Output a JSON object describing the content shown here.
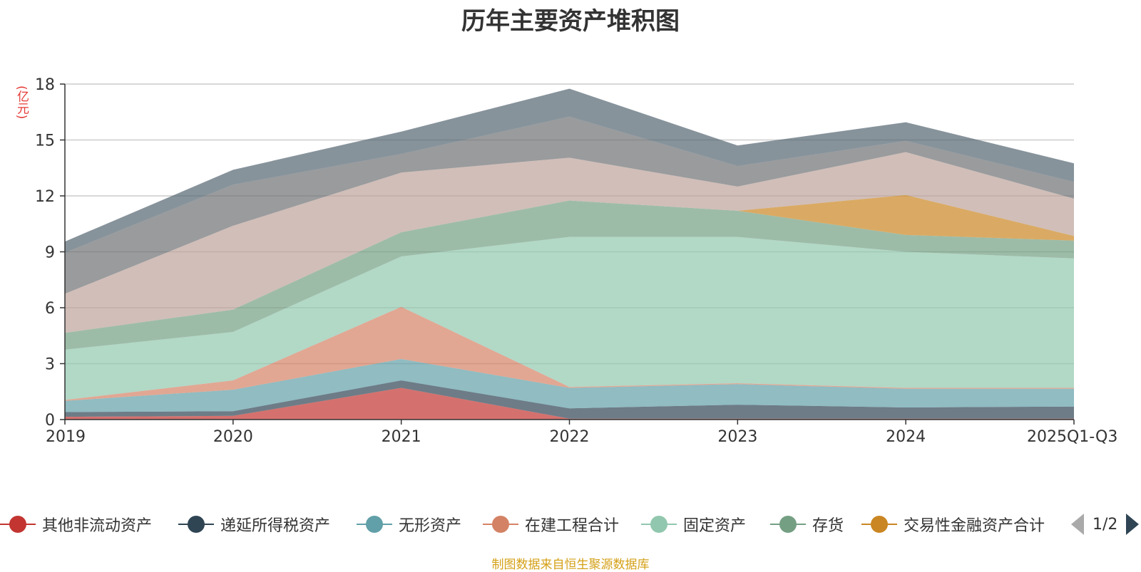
{
  "chart_data": {
    "type": "area",
    "stacked": true,
    "title": "历年主要资产堆积图",
    "ylabel": "(亿元)",
    "xlabel": "",
    "categories": [
      "2019",
      "2020",
      "2021",
      "2022",
      "2023",
      "2024",
      "2025Q1-Q3"
    ],
    "ylim": [
      0,
      18
    ],
    "yticks": [
      0,
      3,
      6,
      9,
      12,
      15,
      18
    ],
    "grid": true,
    "legend_position": "bottom",
    "series": [
      {
        "name": "其他非流动资产",
        "color": "#c23531",
        "legend": true,
        "values": [
          0.15,
          0.2,
          1.7,
          0.05,
          0.05,
          0.05,
          0.05
        ]
      },
      {
        "name": "递延所得税资产",
        "color": "#2f4554",
        "legend": true,
        "values": [
          0.25,
          0.25,
          0.4,
          0.55,
          0.75,
          0.6,
          0.65
        ]
      },
      {
        "name": "无形资产",
        "color": "#61a0a8",
        "legend": true,
        "values": [
          0.6,
          1.15,
          1.15,
          1.1,
          1.1,
          1.0,
          0.95
        ]
      },
      {
        "name": "在建工程合计",
        "color": "#d48265",
        "legend": true,
        "values": [
          0.05,
          0.5,
          2.8,
          0.05,
          0.05,
          0.05,
          0.05
        ]
      },
      {
        "name": "固定资产",
        "color": "#91c7ae",
        "legend": true,
        "values": [
          2.7,
          2.6,
          2.7,
          8.05,
          7.85,
          7.3,
          6.95
        ]
      },
      {
        "name": "存货",
        "color": "#749f83",
        "legend": true,
        "values": [
          0.9,
          1.2,
          1.3,
          1.95,
          1.4,
          0.9,
          0.95
        ]
      },
      {
        "name": "交易性金融资产合计",
        "color": "#ca8622",
        "legend": true,
        "values": [
          0.0,
          0.0,
          0.0,
          0.0,
          0.0,
          2.15,
          0.25
        ]
      },
      {
        "name": "",
        "color": "#bda29a",
        "legend": false,
        "values": [
          2.1,
          4.5,
          3.2,
          2.3,
          1.3,
          2.3,
          2.0
        ]
      },
      {
        "name": "",
        "color": "#6e7074",
        "legend": false,
        "values": [
          2.2,
          2.2,
          1.0,
          2.2,
          1.1,
          0.6,
          0.9
        ]
      },
      {
        "name": "",
        "color": "#546570",
        "legend": false,
        "values": [
          0.6,
          0.8,
          1.2,
          1.5,
          1.1,
          1.0,
          1.0
        ]
      }
    ],
    "pagination": "1/2",
    "source": "制图数据来自恒生聚源数据库"
  }
}
